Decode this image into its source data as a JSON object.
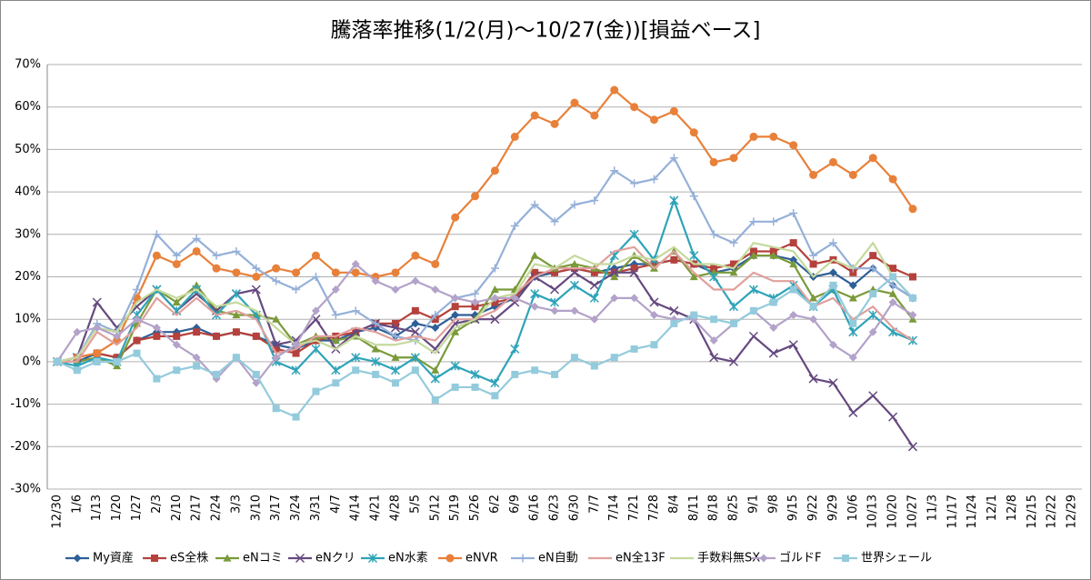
{
  "chart_data": {
    "type": "line",
    "title": "騰落率推移(1/2(月)～10/27(金))[損益ベース]",
    "categories": [
      "12/30",
      "1/6",
      "1/13",
      "1/20",
      "1/27",
      "2/3",
      "2/10",
      "2/17",
      "2/24",
      "3/3",
      "3/10",
      "3/17",
      "3/24",
      "3/31",
      "4/7",
      "4/14",
      "4/21",
      "4/28",
      "5/5",
      "5/12",
      "5/19",
      "5/26",
      "6/2",
      "6/9",
      "6/16",
      "6/23",
      "6/30",
      "7/7",
      "7/14",
      "7/21",
      "7/28",
      "8/4",
      "8/11",
      "8/18",
      "8/25",
      "9/1",
      "9/8",
      "9/15",
      "9/22",
      "9/29",
      "10/6",
      "10/13",
      "10/20",
      "10/27",
      "11/3",
      "11/17",
      "11/24",
      "12/1",
      "12/8",
      "12/15",
      "12/22",
      "12/29"
    ],
    "ylim": [
      -30,
      70
    ],
    "yticks": [
      {
        "value": -30,
        "label": "-30%"
      },
      {
        "value": -20,
        "label": "-20%"
      },
      {
        "value": -10,
        "label": "-10%"
      },
      {
        "value": 0,
        "label": "0%"
      },
      {
        "value": 10,
        "label": "10%"
      },
      {
        "value": 20,
        "label": "20%"
      },
      {
        "value": 30,
        "label": "30%"
      },
      {
        "value": 40,
        "label": "40%"
      },
      {
        "value": 50,
        "label": "50%"
      },
      {
        "value": 60,
        "label": "60%"
      },
      {
        "value": 70,
        "label": "70%"
      }
    ],
    "grid": true,
    "legend": "bottom",
    "series": [
      {
        "name": "My資産",
        "color": "#2e5f97",
        "marker": "diamond",
        "values": [
          0,
          0,
          2,
          1,
          5,
          7,
          7,
          8,
          6,
          7,
          6,
          4,
          3,
          5,
          5,
          7,
          8,
          6,
          9,
          8,
          11,
          11,
          13,
          15,
          20,
          21,
          22,
          21,
          22,
          23,
          23,
          24,
          23,
          21,
          22,
          25,
          25,
          24,
          20,
          21,
          18,
          22,
          18,
          15,
          null,
          null,
          null,
          null,
          null,
          null,
          null,
          null
        ]
      },
      {
        "name": "eS全株",
        "color": "#b5413c",
        "marker": "square",
        "values": [
          0,
          1,
          2,
          1,
          5,
          6,
          6,
          7,
          6,
          7,
          6,
          3,
          2,
          5,
          6,
          7,
          9,
          9,
          12,
          10,
          13,
          13,
          14,
          15,
          21,
          21,
          22,
          21,
          21,
          22,
          23,
          24,
          23,
          22,
          23,
          26,
          26,
          28,
          23,
          24,
          21,
          25,
          22,
          20,
          null,
          null,
          null,
          null,
          null,
          null,
          null,
          null
        ]
      },
      {
        "name": "eNコミ",
        "color": "#7a9a3a",
        "marker": "triangle",
        "values": [
          0,
          0,
          1,
          -1,
          9,
          17,
          14,
          18,
          12,
          11,
          11,
          10,
          4,
          6,
          5,
          6,
          3,
          1,
          1,
          -2,
          7,
          10,
          17,
          17,
          25,
          22,
          23,
          22,
          20,
          25,
          22,
          26,
          20,
          21,
          21,
          25,
          25,
          23,
          15,
          17,
          15,
          17,
          16,
          10,
          null,
          null,
          null,
          null,
          null,
          null,
          null,
          null
        ]
      },
      {
        "name": "eNクリ",
        "color": "#65497f",
        "marker": "x",
        "values": [
          0,
          1,
          14,
          8,
          13,
          17,
          12,
          16,
          12,
          16,
          17,
          4,
          5,
          10,
          3,
          7,
          9,
          8,
          7,
          3,
          9,
          10,
          10,
          14,
          20,
          17,
          21,
          18,
          21,
          21,
          14,
          12,
          10,
          1,
          0,
          6,
          2,
          4,
          -4,
          -5,
          -12,
          -8,
          -13,
          -20,
          null,
          null,
          null,
          null,
          null,
          null,
          null,
          null
        ]
      },
      {
        "name": "eN水素",
        "color": "#2ea3b8",
        "marker": "star",
        "values": [
          0,
          -1,
          1,
          0,
          11,
          17,
          12,
          17,
          11,
          16,
          11,
          0,
          -2,
          3,
          -2,
          1,
          0,
          -2,
          1,
          -4,
          -1,
          -3,
          -5,
          3,
          16,
          14,
          18,
          15,
          25,
          30,
          24,
          38,
          25,
          20,
          13,
          17,
          15,
          18,
          13,
          17,
          7,
          11,
          7,
          5,
          null,
          null,
          null,
          null,
          null,
          null,
          null,
          null
        ]
      },
      {
        "name": "eNVR",
        "color": "#e8803a",
        "marker": "circle",
        "values": [
          0,
          1,
          2,
          5,
          15,
          25,
          23,
          26,
          22,
          21,
          20,
          22,
          21,
          25,
          21,
          21,
          20,
          21,
          25,
          23,
          34,
          39,
          45,
          53,
          58,
          56,
          61,
          58,
          64,
          60,
          57,
          59,
          54,
          47,
          48,
          53,
          53,
          51,
          44,
          47,
          44,
          48,
          43,
          36,
          null,
          null,
          null,
          null,
          null,
          null,
          null,
          null
        ]
      },
      {
        "name": "eN自動",
        "color": "#95b0d8",
        "marker": "plus",
        "values": [
          0,
          1,
          9,
          7,
          17,
          30,
          25,
          29,
          25,
          26,
          22,
          19,
          17,
          20,
          11,
          12,
          9,
          6,
          5,
          11,
          15,
          16,
          22,
          32,
          37,
          33,
          37,
          38,
          45,
          42,
          43,
          48,
          39,
          30,
          28,
          33,
          33,
          35,
          25,
          28,
          22,
          22,
          18,
          15,
          null,
          null,
          null,
          null,
          null,
          null,
          null,
          null
        ]
      },
      {
        "name": "eN全13F",
        "color": "#e0a09c",
        "marker": "none",
        "values": [
          0,
          0,
          7,
          4,
          8,
          15,
          11,
          15,
          11,
          12,
          10,
          2,
          3,
          6,
          6,
          8,
          7,
          5,
          6,
          5,
          10,
          10,
          12,
          16,
          20,
          22,
          22,
          22,
          26,
          27,
          22,
          26,
          21,
          17,
          17,
          21,
          19,
          19,
          13,
          15,
          10,
          13,
          8,
          5,
          null,
          null,
          null,
          null,
          null,
          null,
          null,
          null
        ]
      },
      {
        "name": "手数料無SX",
        "color": "#c5d99c",
        "marker": "none",
        "values": [
          0,
          1,
          8,
          7,
          14,
          17,
          15,
          17,
          13,
          14,
          12,
          8,
          4,
          5,
          3,
          6,
          4,
          4,
          5,
          2,
          8,
          10,
          15,
          16,
          23,
          22,
          25,
          23,
          23,
          25,
          24,
          27,
          23,
          23,
          22,
          28,
          27,
          26,
          20,
          24,
          22,
          28,
          20,
          15,
          null,
          null,
          null,
          null,
          null,
          null,
          null,
          null
        ]
      },
      {
        "name": "ゴルドF",
        "color": "#b3a2c9",
        "marker": "diamond",
        "values": [
          0,
          7,
          8,
          6,
          10,
          8,
          4,
          1,
          -4,
          1,
          -5,
          1,
          4,
          12,
          17,
          23,
          19,
          17,
          19,
          17,
          15,
          14,
          15,
          15,
          13,
          12,
          12,
          10,
          15,
          15,
          11,
          10,
          10,
          5,
          9,
          12,
          8,
          11,
          10,
          4,
          1,
          7,
          14,
          11,
          null,
          null,
          null,
          null,
          null,
          null,
          null,
          null
        ]
      },
      {
        "name": "世界シェール",
        "color": "#93cbdc",
        "marker": "square",
        "values": [
          0,
          -2,
          0,
          0,
          2,
          -4,
          -2,
          -1,
          -3,
          1,
          -3,
          -11,
          -13,
          -7,
          -5,
          -2,
          -3,
          -5,
          -2,
          -9,
          -6,
          -6,
          -8,
          -3,
          -2,
          -3,
          1,
          -1,
          1,
          3,
          4,
          9,
          11,
          10,
          9,
          12,
          14,
          17,
          13,
          18,
          9,
          16,
          20,
          15,
          null,
          null,
          null,
          null,
          null,
          null,
          null,
          null
        ]
      }
    ]
  }
}
